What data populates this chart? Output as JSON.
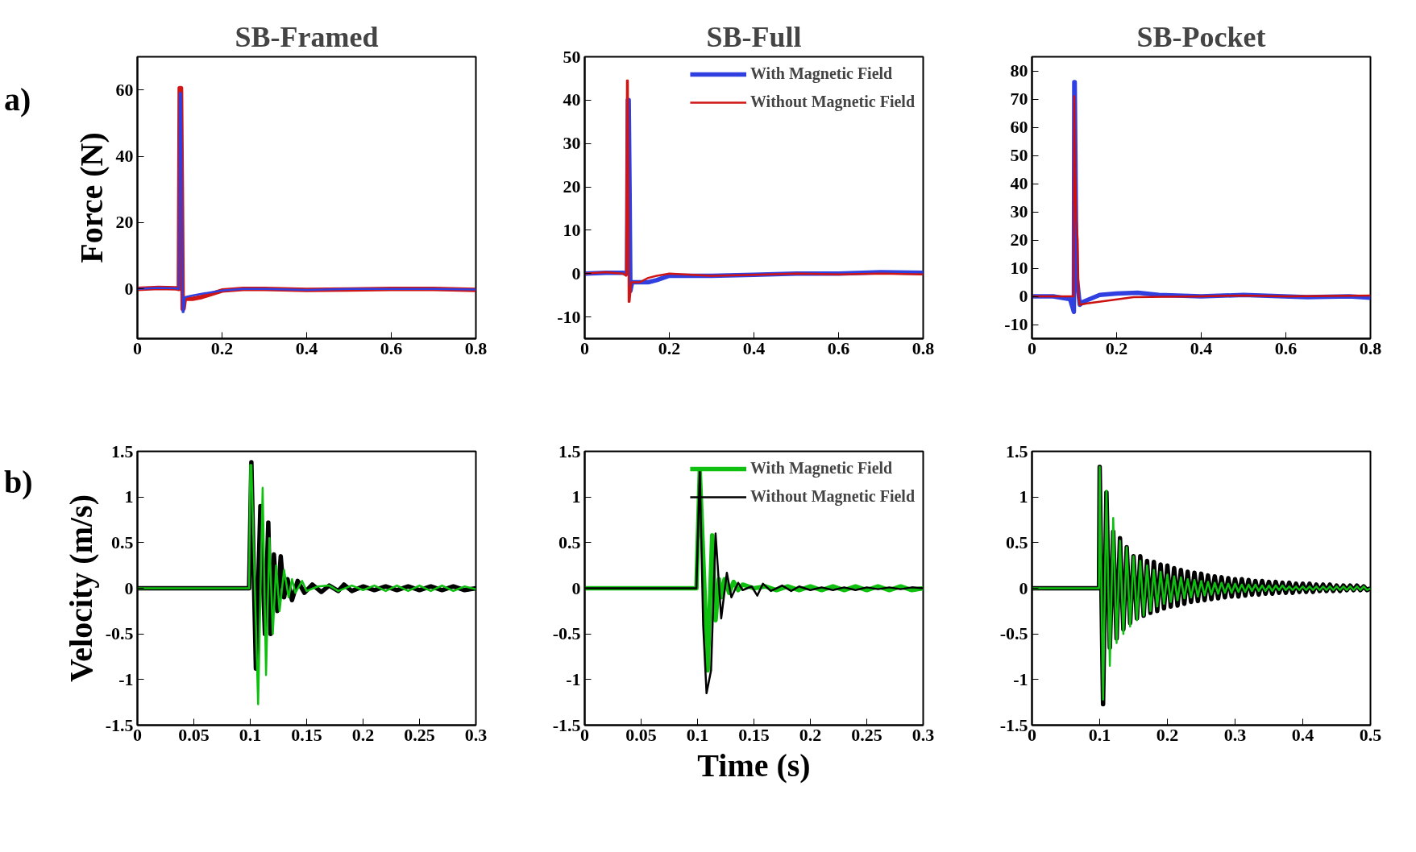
{
  "chart_data": [
    {
      "type": "line",
      "title": "SB-Framed",
      "ylabel": "Force (N)",
      "annotations": [
        "a)"
      ],
      "xlim": [
        0,
        0.8
      ],
      "ylim": [
        -15,
        70
      ],
      "xticks": [
        0,
        0.2,
        0.4,
        0.6,
        0.8
      ],
      "yticks": [
        0,
        20,
        40,
        60
      ],
      "grid": false,
      "legend": false,
      "series": [
        {
          "color": "#d01515",
          "x": [
            0,
            0.05,
            0.09,
            0.098,
            0.1,
            0.103,
            0.105,
            0.107,
            0.109,
            0.112,
            0.13,
            0.15,
            0.2,
            0.25,
            0.3,
            0.4,
            0.5,
            0.6,
            0.7,
            0.8
          ],
          "values": [
            0,
            0.3,
            0.2,
            0,
            60.5,
            60.5,
            30,
            -6,
            -6,
            -3,
            -3,
            -2.5,
            -0.5,
            0,
            0,
            -0.3,
            -0.2,
            0,
            0,
            -0.3
          ]
        },
        {
          "color": "#3040e0",
          "x": [
            0,
            0.05,
            0.09,
            0.098,
            0.1,
            0.103,
            0.105,
            0.107,
            0.109,
            0.112,
            0.13,
            0.15,
            0.2,
            0.25,
            0.3,
            0.4,
            0.5,
            0.6,
            0.7,
            0.8
          ],
          "values": [
            0,
            0.3,
            0.2,
            0,
            59,
            59,
            30,
            -7,
            -7,
            -2.5,
            -2,
            -1.5,
            -0.5,
            0,
            0,
            -0.3,
            0,
            0,
            0,
            -0.2
          ]
        }
      ]
    },
    {
      "type": "line",
      "title": "SB-Full",
      "xlim": [
        0,
        0.8
      ],
      "ylim": [
        -15,
        50
      ],
      "xticks": [
        0,
        0.2,
        0.4,
        0.6,
        0.8
      ],
      "yticks": [
        -10,
        0,
        10,
        20,
        30,
        40,
        50
      ],
      "grid": false,
      "legend": "top right",
      "series": [
        {
          "name": "With Magnetic Field",
          "color": "#3040e0",
          "x": [
            0,
            0.05,
            0.09,
            0.1,
            0.102,
            0.104,
            0.106,
            0.108,
            0.112,
            0.13,
            0.15,
            0.17,
            0.2,
            0.3,
            0.4,
            0.5,
            0.6,
            0.7,
            0.8
          ],
          "values": [
            0,
            0.2,
            0.2,
            0,
            40,
            40,
            20,
            -4,
            -2,
            -2,
            -2,
            -1.5,
            -0.5,
            -0.5,
            -0.3,
            0,
            0,
            0.3,
            0.2
          ]
        },
        {
          "name": "Without Magnetic Field",
          "color": "#d01515",
          "x": [
            0,
            0.05,
            0.09,
            0.098,
            0.1,
            0.102,
            0.104,
            0.106,
            0.11,
            0.13,
            0.15,
            0.17,
            0.2,
            0.3,
            0.4,
            0.5,
            0.6,
            0.7,
            0.8
          ],
          "values": [
            0,
            0.3,
            0,
            -0.5,
            44.5,
            44.5,
            -6.5,
            -6.5,
            -2,
            -2,
            -1,
            -0.5,
            0,
            -0.5,
            -0.3,
            0,
            -0.2,
            0,
            -0.2
          ]
        }
      ]
    },
    {
      "type": "line",
      "title": "SB-Pocket",
      "xlim": [
        0,
        0.8
      ],
      "ylim": [
        -15,
        85
      ],
      "xticks": [
        0,
        0.2,
        0.4,
        0.6,
        0.8
      ],
      "yticks": [
        -10,
        0,
        10,
        20,
        30,
        40,
        50,
        60,
        70,
        80
      ],
      "grid": false,
      "legend": false,
      "series": [
        {
          "color": "#3040e0",
          "x": [
            0,
            0.05,
            0.09,
            0.099,
            0.1,
            0.101,
            0.105,
            0.113,
            0.12,
            0.16,
            0.2,
            0.25,
            0.3,
            0.4,
            0.5,
            0.65,
            0.75,
            0.8
          ],
          "values": [
            0,
            0,
            -1,
            -5.5,
            76,
            76,
            8,
            -3,
            -2,
            0.5,
            1,
            1.3,
            0.5,
            0,
            0.5,
            -0.3,
            0,
            -0.5
          ]
        },
        {
          "color": "#cc1010",
          "x": [
            0,
            0.05,
            0.098,
            0.1,
            0.102,
            0.105,
            0.108,
            0.11,
            0.113,
            0.13,
            0.18,
            0.24,
            0.4,
            0.5,
            0.6,
            0.8
          ],
          "values": [
            0,
            0,
            0,
            71,
            45,
            27,
            20,
            0,
            -3,
            -2.5,
            -1.5,
            -0.3,
            0,
            0.3,
            0,
            0.3
          ]
        }
      ]
    },
    {
      "type": "line",
      "ylabel": "Velocity (m/s)",
      "annotations": [
        "b)"
      ],
      "xlim": [
        0,
        0.3
      ],
      "ylim": [
        -1.5,
        1.5
      ],
      "xticks": [
        0,
        0.05,
        0.1,
        0.15,
        0.2,
        0.25,
        0.3
      ],
      "yticks": [
        -1.5,
        -1,
        -0.5,
        0,
        0.5,
        1,
        1.5
      ],
      "grid": false,
      "legend": false,
      "series": [
        {
          "color": "#000000",
          "x": [
            0,
            0.099,
            0.101,
            0.105,
            0.109,
            0.113,
            0.116,
            0.118,
            0.121,
            0.124,
            0.127,
            0.13,
            0.133,
            0.137,
            0.142,
            0.148,
            0.155,
            0.163,
            0.17,
            0.178,
            0.183,
            0.19,
            0.2,
            0.21,
            0.22,
            0.23,
            0.24,
            0.25,
            0.26,
            0.27,
            0.28,
            0.29,
            0.3
          ],
          "values": [
            0,
            0,
            1.38,
            -0.88,
            0.9,
            -0.5,
            0.72,
            -0.5,
            0.37,
            -0.25,
            0.35,
            -0.1,
            0.1,
            -0.13,
            0.08,
            -0.05,
            0.04,
            -0.04,
            0.03,
            -0.03,
            0.04,
            -0.03,
            0.02,
            -0.02,
            0.02,
            -0.02,
            0.02,
            -0.02,
            0.02,
            -0.02,
            0.02,
            -0.02,
            0
          ]
        },
        {
          "color": "#10c010",
          "x": [
            0,
            0.099,
            0.1,
            0.101,
            0.107,
            0.111,
            0.114,
            0.117,
            0.12,
            0.123,
            0.126,
            0.13,
            0.134,
            0.137,
            0.14,
            0.146,
            0.15,
            0.16,
            0.17,
            0.178,
            0.19,
            0.2,
            0.21,
            0.22,
            0.23,
            0.24,
            0.25,
            0.26,
            0.27,
            0.28,
            0.29,
            0.3
          ],
          "values": [
            0,
            0,
            1.35,
            1.35,
            -1.27,
            1.1,
            -0.95,
            0.55,
            -0.5,
            0.25,
            -0.25,
            0.2,
            -0.1,
            0.1,
            -0.05,
            0.08,
            -0.03,
            0.02,
            0.03,
            -0.03,
            0.03,
            -0.02,
            0.03,
            -0.03,
            0.03,
            -0.03,
            0.03,
            -0.03,
            0.03,
            -0.03,
            0.02,
            -0.01
          ]
        }
      ]
    },
    {
      "type": "line",
      "xlabel": "Time (s)",
      "xlim": [
        0,
        0.3
      ],
      "ylim": [
        -1.5,
        1.5
      ],
      "xticks": [
        0,
        0.05,
        0.1,
        0.15,
        0.2,
        0.25,
        0.3
      ],
      "yticks": [
        -1.5,
        -1,
        -0.5,
        0,
        0.5,
        1,
        1.5
      ],
      "grid": false,
      "legend": "top right",
      "series": [
        {
          "name": "With Magnetic Field",
          "color": "#10c010",
          "x": [
            0,
            0.099,
            0.102,
            0.105,
            0.109,
            0.113,
            0.116,
            0.119,
            0.121,
            0.124,
            0.128,
            0.132,
            0.136,
            0.14,
            0.15,
            0.16,
            0.17,
            0.18,
            0.19,
            0.2,
            0.21,
            0.22,
            0.23,
            0.24,
            0.25,
            0.26,
            0.27,
            0.28,
            0.29,
            0.3
          ],
          "values": [
            0,
            0,
            1.28,
            0.35,
            -0.9,
            0.58,
            -0.35,
            0.1,
            -0.1,
            0.1,
            -0.05,
            0.07,
            -0.02,
            0.04,
            0,
            0.02,
            -0.02,
            0.02,
            -0.02,
            0.02,
            -0.02,
            0.02,
            -0.02,
            0.02,
            -0.02,
            0.02,
            -0.02,
            0.02,
            -0.02,
            0
          ]
        },
        {
          "name": "Without Magnetic Field",
          "color": "#000000",
          "x": [
            0,
            0.099,
            0.102,
            0.105,
            0.108,
            0.112,
            0.116,
            0.121,
            0.126,
            0.13,
            0.136,
            0.14,
            0.148,
            0.153,
            0.158,
            0.165,
            0.175,
            0.183,
            0.19,
            0.2,
            0.21,
            0.22,
            0.23,
            0.24,
            0.25,
            0.26,
            0.27,
            0.28,
            0.29,
            0.3
          ],
          "values": [
            0,
            0,
            1.3,
            -0.4,
            -1.15,
            -0.9,
            0.6,
            -0.33,
            0.17,
            -0.1,
            0.06,
            -0.02,
            0.02,
            -0.08,
            0.05,
            -0.03,
            0.03,
            -0.03,
            0.02,
            -0.02,
            0.01,
            -0.02,
            0.01,
            -0.02,
            0.01,
            -0.01,
            0.01,
            -0.01,
            0.01,
            0
          ]
        }
      ]
    },
    {
      "type": "line",
      "xlim": [
        0,
        0.5
      ],
      "ylim": [
        -1.5,
        1.5
      ],
      "xticks": [
        0,
        0.1,
        0.2,
        0.3,
        0.4,
        0.5
      ],
      "yticks": [
        -1.5,
        -1,
        -0.5,
        0,
        0.5,
        1,
        1.5
      ],
      "grid": false,
      "legend": false,
      "x": [
        0,
        0.099,
        0.1,
        0.105,
        0.11,
        0.115,
        0.12,
        0.125,
        0.13,
        0.135,
        0.14,
        0.145,
        0.15,
        0.155,
        0.16,
        0.165,
        0.17,
        0.175,
        0.18,
        0.185,
        0.19,
        0.195,
        0.2,
        0.205,
        0.21,
        0.215,
        0.22,
        0.225,
        0.23,
        0.235,
        0.24,
        0.245,
        0.25,
        0.255,
        0.26,
        0.265,
        0.27,
        0.275,
        0.28,
        0.285,
        0.29,
        0.295,
        0.3,
        0.305,
        0.31,
        0.315,
        0.32,
        0.325,
        0.33,
        0.335,
        0.34,
        0.345,
        0.35,
        0.355,
        0.36,
        0.365,
        0.37,
        0.375,
        0.38,
        0.385,
        0.39,
        0.395,
        0.4,
        0.405,
        0.41,
        0.415,
        0.42,
        0.425,
        0.43,
        0.435,
        0.44,
        0.445,
        0.45,
        0.455,
        0.46,
        0.465,
        0.47,
        0.475,
        0.48,
        0.485,
        0.49,
        0.495,
        0.5
      ],
      "series": [
        {
          "color": "#000000",
          "values": [
            0,
            0,
            1.33,
            -1.27,
            1.05,
            -0.65,
            0.62,
            -0.55,
            0.55,
            -0.45,
            0.45,
            -0.38,
            0.35,
            -0.33,
            0.35,
            -0.3,
            0.3,
            -0.27,
            0.29,
            -0.25,
            0.26,
            -0.22,
            0.25,
            -0.2,
            0.22,
            -0.19,
            0.2,
            -0.17,
            0.18,
            -0.15,
            0.17,
            -0.14,
            0.16,
            -0.13,
            0.14,
            -0.12,
            0.13,
            -0.11,
            0.12,
            -0.1,
            0.11,
            -0.09,
            0.1,
            -0.09,
            0.1,
            -0.08,
            0.09,
            -0.07,
            0.08,
            -0.07,
            0.08,
            -0.06,
            0.07,
            -0.06,
            0.07,
            -0.05,
            0.06,
            -0.05,
            0.06,
            -0.05,
            0.05,
            -0.04,
            0.05,
            -0.04,
            0.05,
            -0.04,
            0.04,
            -0.03,
            0.04,
            -0.03,
            0.04,
            -0.03,
            0.03,
            -0.03,
            0.03,
            -0.02,
            0.03,
            -0.02,
            0.03,
            -0.02,
            0.02,
            -0.02,
            0
          ]
        },
        {
          "color": "#10c010",
          "values": [
            0,
            0,
            1.33,
            -1.22,
            1.07,
            -0.85,
            0.77,
            -0.6,
            0.52,
            -0.5,
            0.45,
            -0.42,
            0.35,
            -0.35,
            0.3,
            -0.3,
            0.25,
            -0.25,
            0.2,
            -0.2,
            0.18,
            -0.17,
            0.15,
            -0.15,
            0.13,
            -0.13,
            0.12,
            -0.11,
            0.1,
            -0.1,
            0.09,
            -0.09,
            0.08,
            -0.08,
            0.07,
            -0.07,
            0.06,
            -0.06,
            0.06,
            -0.05,
            0.05,
            -0.05,
            0.05,
            -0.04,
            0.04,
            -0.04,
            0.04,
            -0.03,
            0.04,
            -0.03,
            0.03,
            -0.03,
            0.03,
            -0.03,
            0.03,
            -0.02,
            0.03,
            -0.02,
            0.02,
            -0.02,
            0.02,
            -0.02,
            0.02,
            -0.02,
            0.02,
            -0.02,
            0.02,
            -0.02,
            0.02,
            -0.02,
            0.02,
            -0.02,
            0.02,
            -0.02,
            0.02,
            -0.02,
            0.02,
            -0.02,
            0.02,
            -0.02,
            0.02,
            -0.02,
            0
          ]
        }
      ]
    }
  ]
}
